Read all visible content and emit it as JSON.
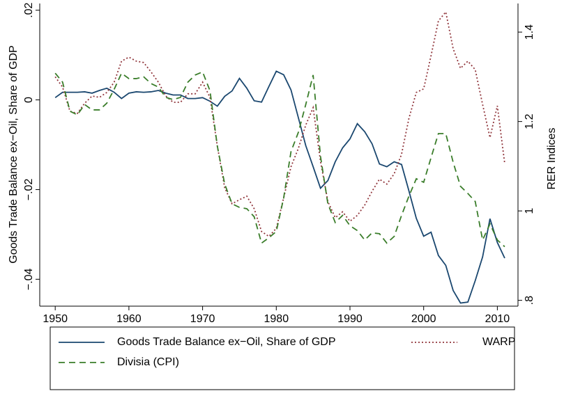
{
  "chart_data": {
    "type": "line",
    "y_label": "Goods Trade Balance ex−Oil, Share of GDP",
    "y2_label": "RER Indices",
    "x": [
      1950,
      1951,
      1952,
      1953,
      1954,
      1955,
      1956,
      1957,
      1958,
      1959,
      1960,
      1961,
      1962,
      1963,
      1964,
      1965,
      1966,
      1967,
      1968,
      1969,
      1970,
      1971,
      1972,
      1973,
      1974,
      1975,
      1976,
      1977,
      1978,
      1979,
      1980,
      1981,
      1982,
      1983,
      1984,
      1985,
      1986,
      1987,
      1988,
      1989,
      1990,
      1991,
      1992,
      1993,
      1994,
      1995,
      1996,
      1997,
      1998,
      1999,
      2000,
      2001,
      2002,
      2003,
      2004,
      2005,
      2006,
      2007,
      2008,
      2009,
      2010,
      2011
    ],
    "xlim": [
      1947.9,
      2012.8
    ],
    "xticks": [
      1950,
      1960,
      1970,
      1980,
      1990,
      2000,
      2010
    ],
    "ylim": [
      -0.046,
      0.0215
    ],
    "yticks": [
      {
        "value": 0.02,
        "label": ".02"
      },
      0,
      {
        "value": -0.02,
        "label": "−.02"
      },
      {
        "value": -0.04,
        "label": "−.04"
      }
    ],
    "y2lim": [
      0.787,
      1.464
    ],
    "y2ticks": [
      1.4,
      1.2,
      1,
      {
        "value": 0.8,
        "label": ".8"
      }
    ],
    "series": [
      {
        "name": "Goods Trade Balance ex−Oil, Share of GDP",
        "color": "#1a476f",
        "dash": "solid",
        "values": [
          0.0005,
          0.0017,
          0.0017,
          0.0017,
          0.0018,
          0.0015,
          0.0021,
          0.0026,
          0.0017,
          0.0003,
          0.0015,
          0.0018,
          0.0017,
          0.0018,
          0.0021,
          0.0015,
          0.0011,
          0.0011,
          0.0003,
          0.0003,
          0.0005,
          -0.0003,
          -0.0014,
          0.0008,
          0.002,
          0.0048,
          0.0026,
          -0.0002,
          -0.0005,
          0.003,
          0.0064,
          0.0056,
          0.0022,
          -0.004,
          -0.0102,
          -0.0149,
          -0.0197,
          -0.018,
          -0.0138,
          -0.0107,
          -0.0087,
          -0.0053,
          -0.0071,
          -0.0098,
          -0.0143,
          -0.0149,
          -0.0138,
          -0.0144,
          -0.0203,
          -0.0264,
          -0.0304,
          -0.0295,
          -0.0347,
          -0.0369,
          -0.0425,
          -0.0453,
          -0.0451,
          -0.0403,
          -0.035,
          -0.0265,
          -0.0318,
          -0.0353
        ]
      },
      {
        "name": "WARP",
        "color": "#90353b",
        "dash": "dot",
        "axis": "y2",
        "values": [
          1.3,
          1.277,
          1.223,
          1.218,
          1.241,
          1.257,
          1.254,
          1.265,
          1.288,
          1.335,
          1.344,
          1.335,
          1.332,
          1.311,
          1.288,
          1.257,
          1.243,
          1.243,
          1.262,
          1.262,
          1.288,
          1.254,
          1.145,
          1.052,
          1.016,
          1.025,
          1.033,
          1.005,
          0.954,
          0.943,
          0.961,
          1.029,
          1.099,
          1.14,
          1.192,
          1.231,
          1.111,
          1.021,
          0.985,
          0.998,
          0.977,
          0.99,
          1.013,
          1.044,
          1.071,
          1.06,
          1.083,
          1.127,
          1.207,
          1.265,
          1.273,
          1.347,
          1.425,
          1.445,
          1.363,
          1.319,
          1.335,
          1.316,
          1.238,
          1.164,
          1.235,
          1.106
        ]
      },
      {
        "name": "Divisia (CPI)",
        "color": "#3a7d2a",
        "dash": "dash",
        "axis": "y2",
        "values": [
          1.308,
          1.288,
          1.223,
          1.215,
          1.238,
          1.226,
          1.226,
          1.241,
          1.272,
          1.308,
          1.296,
          1.296,
          1.3,
          1.285,
          1.277,
          1.254,
          1.249,
          1.254,
          1.288,
          1.304,
          1.311,
          1.269,
          1.145,
          1.06,
          1.016,
          1.008,
          1.005,
          0.987,
          0.928,
          0.94,
          0.954,
          1.029,
          1.133,
          1.176,
          1.238,
          1.304,
          1.122,
          1.016,
          0.974,
          0.99,
          0.967,
          0.956,
          0.935,
          0.951,
          0.949,
          0.928,
          0.943,
          0.99,
          1.033,
          1.072,
          1.064,
          1.119,
          1.173,
          1.173,
          1.109,
          1.055,
          1.039,
          1.021,
          0.935,
          0.971,
          0.935,
          0.92
        ]
      }
    ]
  }
}
